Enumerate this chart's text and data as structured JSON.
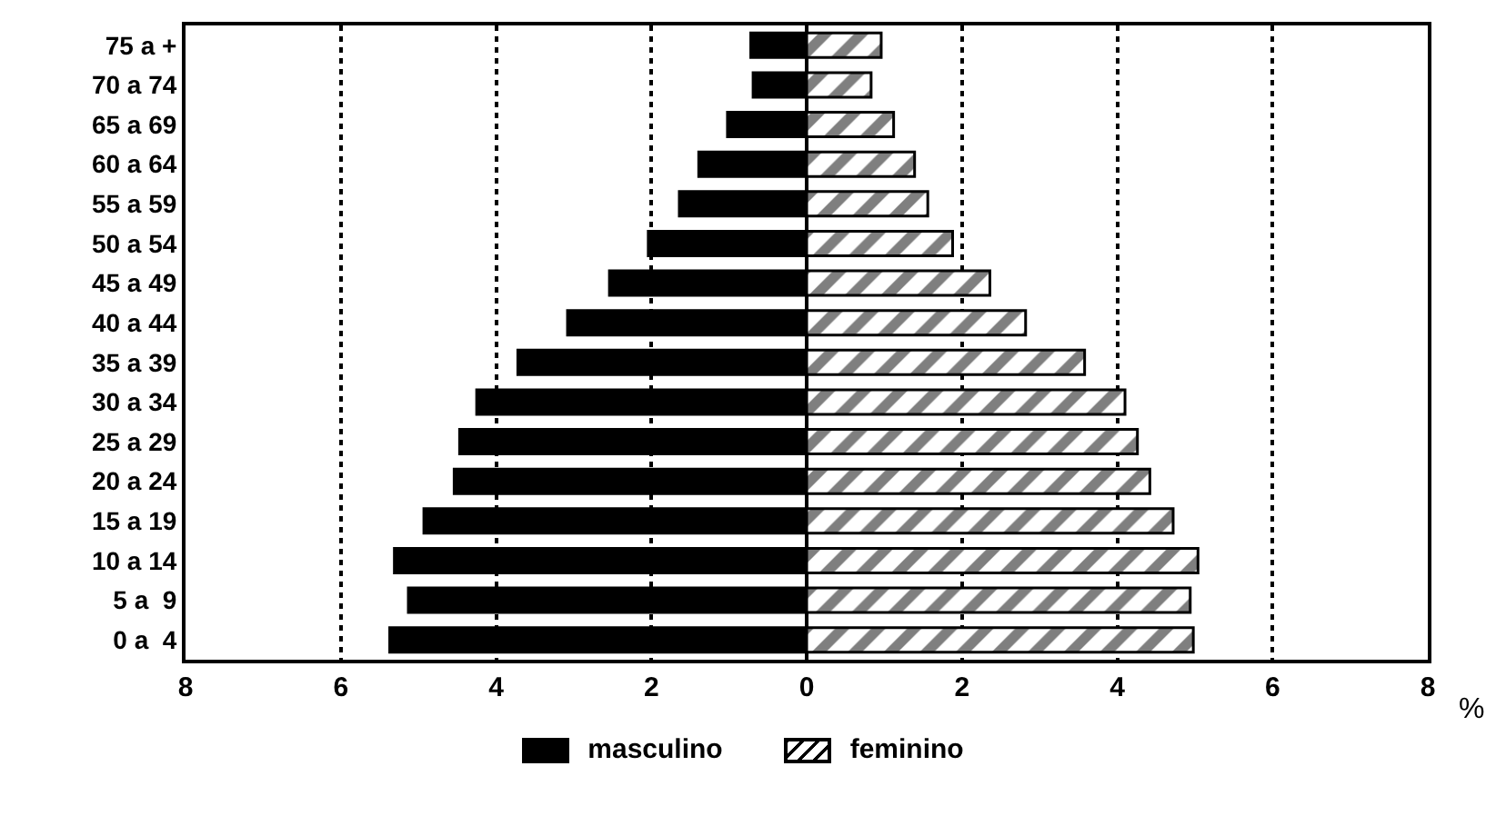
{
  "chart_data": {
    "type": "bar",
    "orientation": "horizontal",
    "categories": [
      "75 a +",
      "70 a 74",
      "65 a 69",
      "60 a 64",
      "55 a 59",
      "50 a 54",
      "45 a 49",
      "40 a 44",
      "35 a 39",
      "30 a 34",
      "25 a 29",
      "20 a 24",
      "15 a 19",
      "10 a 14",
      "5 a  9",
      "0 a  4"
    ],
    "series": [
      {
        "name": "masculino",
        "color": "#000000",
        "values": [
          -0.72,
          -0.69,
          -1.02,
          -1.39,
          -1.64,
          -2.04,
          -2.54,
          -3.08,
          -3.72,
          -4.25,
          -4.47,
          -4.54,
          -4.93,
          -5.31,
          -5.13,
          -5.37
        ]
      },
      {
        "name": "feminino",
        "color": "#000000",
        "values": [
          0.96,
          0.83,
          1.12,
          1.39,
          1.56,
          1.88,
          2.36,
          2.82,
          3.58,
          4.1,
          4.26,
          4.42,
          4.72,
          5.04,
          4.94,
          4.98
        ]
      }
    ],
    "xlim": [
      -8,
      8
    ],
    "xticks": [
      {
        "value": -8,
        "label": "8"
      },
      {
        "value": -6,
        "label": "6"
      },
      {
        "value": -4,
        "label": "4"
      },
      {
        "value": -2,
        "label": "2"
      },
      0,
      2,
      4,
      6,
      8
    ],
    "stacked": true,
    "grid": "x",
    "legend": "bottom",
    "annotations": [
      "%"
    ]
  }
}
